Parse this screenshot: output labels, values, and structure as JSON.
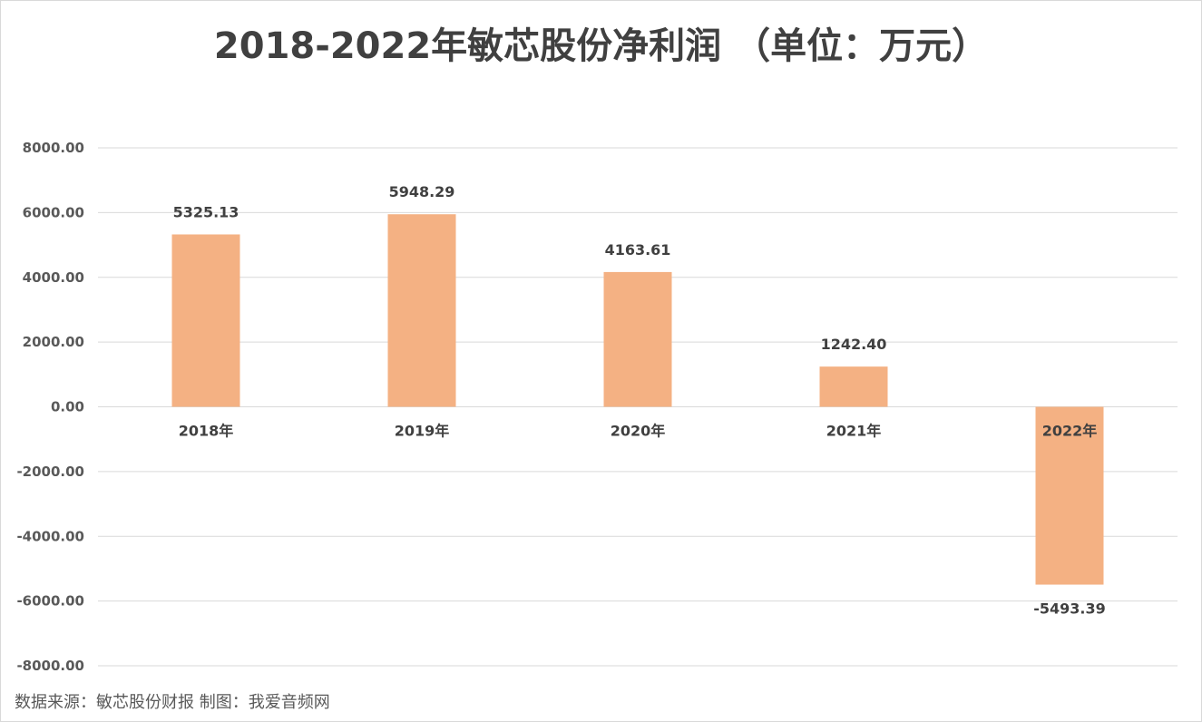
{
  "chart_data": {
    "type": "bar",
    "title": "2018-2022年敏芯股份净利润 （单位：万元）",
    "categories": [
      "2018年",
      "2019年",
      "2020年",
      "2021年",
      "2022年"
    ],
    "values": [
      5325.13,
      5948.29,
      4163.61,
      1242.4,
      -5493.39
    ],
    "data_labels": [
      "5325.13",
      "5948.29",
      "4163.61",
      "1242.40",
      "-5493.39"
    ],
    "ylim": [
      -8000,
      8000
    ],
    "yticks": [
      8000,
      6000,
      4000,
      2000,
      0,
      -2000,
      -4000,
      -6000,
      -8000
    ],
    "ytick_labels": [
      "8000.00",
      "6000.00",
      "4000.00",
      "2000.00",
      "0.00",
      "-2000.00",
      "-4000.00",
      "-6000.00",
      "-8000.00"
    ],
    "xlabel": "",
    "ylabel": "",
    "grid": true,
    "legend": "none",
    "bar_color": "#f4b183",
    "grid_color": "#d9d9d9"
  },
  "footnote": "数据来源：敏芯股份财报  制图：我爱音频网"
}
